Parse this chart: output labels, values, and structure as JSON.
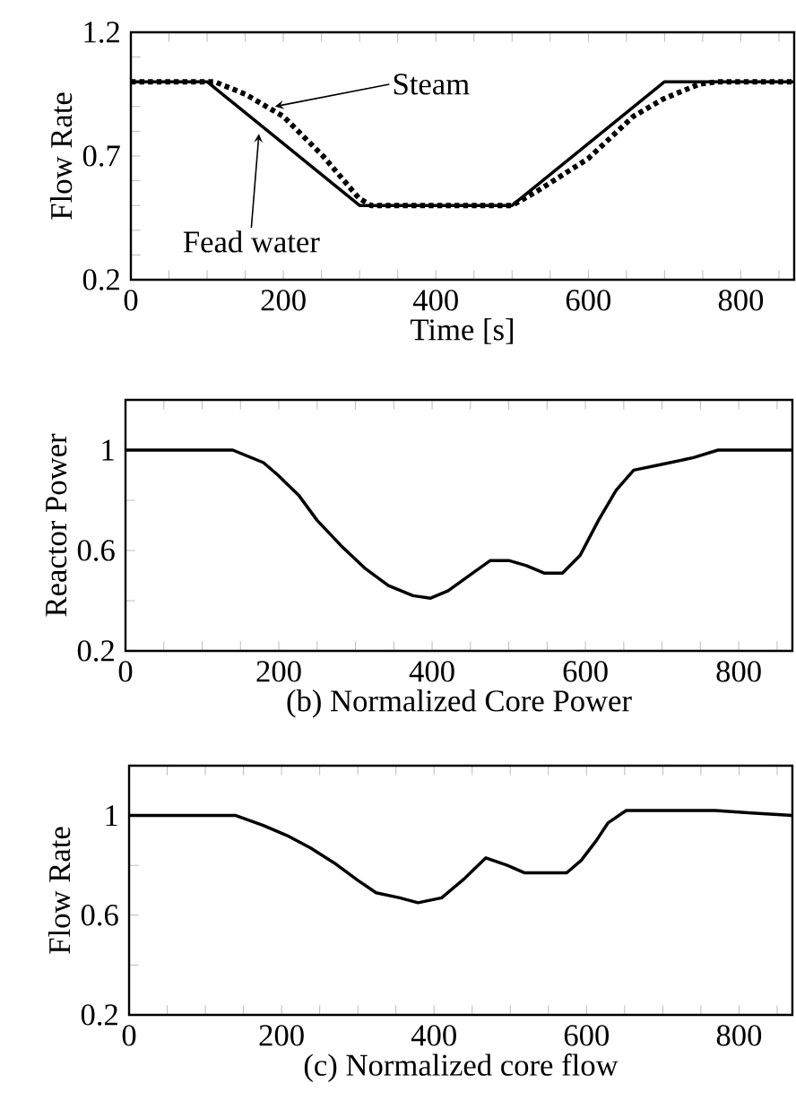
{
  "chart_data": [
    {
      "type": "line",
      "xlabel": "Time [s]",
      "ylabel": "Flow Rate",
      "xlim": [
        0,
        870
      ],
      "ylim": [
        0.2,
        1.2
      ],
      "xticks": [
        0,
        {
          "value": 50,
          "label": null
        },
        {
          "value": 100,
          "label": null
        },
        {
          "value": 150,
          "label": null
        },
        200,
        {
          "value": 250,
          "label": null
        },
        {
          "value": 300,
          "label": null
        },
        {
          "value": 350,
          "label": null
        },
        400,
        {
          "value": 450,
          "label": null
        },
        {
          "value": 500,
          "label": null
        },
        {
          "value": 550,
          "label": null
        },
        600,
        {
          "value": 650,
          "label": null
        },
        {
          "value": 700,
          "label": null
        },
        {
          "value": 750,
          "label": null
        },
        800,
        {
          "value": 850,
          "label": null
        }
      ],
      "yticks": [
        0.2,
        {
          "value": 0.3,
          "label": null
        },
        {
          "value": 0.4,
          "label": null
        },
        {
          "value": 0.5,
          "label": null
        },
        {
          "value": 0.6,
          "label": null
        },
        0.7,
        {
          "value": 0.8,
          "label": null
        },
        {
          "value": 0.9,
          "label": null
        },
        {
          "value": 1.0,
          "label": null
        },
        {
          "value": 1.1,
          "label": null
        },
        1.2
      ],
      "series": [
        {
          "color": "#000000",
          "line_style": "solid",
          "x": [
            0,
            100,
            300,
            500,
            700,
            870
          ],
          "values": [
            1.0,
            1.0,
            0.5,
            0.5,
            1.0,
            1.0
          ]
        },
        {
          "color": "#000000",
          "line_style": "dotted",
          "x": [
            0,
            110,
            150,
            200,
            252,
            299,
            315,
            500,
            534,
            600,
            659,
            698,
            745,
            769,
            870
          ],
          "values": [
            1.0,
            1.0,
            0.95,
            0.86,
            0.7,
            0.53,
            0.5,
            0.5,
            0.56,
            0.69,
            0.86,
            0.93,
            0.99,
            1.0,
            1.0
          ]
        }
      ],
      "annotations": [
        {
          "text": "Steam",
          "x": 189,
          "y": 0.9
        },
        {
          "text": "Fead water",
          "x": 168,
          "y": 0.79
        }
      ]
    },
    {
      "type": "line",
      "xlabel": "(b) Normalized Core Power",
      "ylabel": "Reactor Power",
      "xlim": [
        0,
        870
      ],
      "ylim": [
        0.2,
        1.2
      ],
      "xticks": [
        0,
        {
          "value": 50,
          "label": null
        },
        {
          "value": 100,
          "label": null
        },
        {
          "value": 150,
          "label": null
        },
        200,
        {
          "value": 250,
          "label": null
        },
        {
          "value": 300,
          "label": null
        },
        {
          "value": 350,
          "label": null
        },
        400,
        {
          "value": 450,
          "label": null
        },
        {
          "value": 500,
          "label": null
        },
        {
          "value": 550,
          "label": null
        },
        600,
        {
          "value": 650,
          "label": null
        },
        {
          "value": 700,
          "label": null
        },
        {
          "value": 750,
          "label": null
        },
        800,
        {
          "value": 850,
          "label": null
        }
      ],
      "yticks": [
        0.2,
        {
          "value": 0.4,
          "label": null
        },
        0.6,
        {
          "value": 0.8,
          "label": null
        },
        1,
        {
          "value": 1.2,
          "label": null
        }
      ],
      "series": [
        {
          "color": "#000000",
          "line_style": "solid",
          "x": [
            0,
            140,
            180,
            199,
            226,
            250,
            281,
            312,
            343,
            375,
            398,
            421,
            453,
            476,
            500,
            523,
            546,
            570,
            593,
            617,
            640,
            663,
            695,
            741,
            773,
            870
          ],
          "values": [
            1.0,
            1.0,
            0.95,
            0.9,
            0.82,
            0.72,
            0.62,
            0.53,
            0.46,
            0.42,
            0.41,
            0.44,
            0.51,
            0.56,
            0.56,
            0.54,
            0.51,
            0.51,
            0.58,
            0.72,
            0.84,
            0.92,
            0.94,
            0.97,
            1.0,
            1.0
          ]
        }
      ]
    },
    {
      "type": "line",
      "xlabel": "(c) Normalized core flow",
      "ylabel": "Flow Rate",
      "xlim": [
        0,
        870
      ],
      "ylim": [
        0.2,
        1.2
      ],
      "xticks": [
        0,
        {
          "value": 50,
          "label": null
        },
        {
          "value": 100,
          "label": null
        },
        {
          "value": 150,
          "label": null
        },
        200,
        {
          "value": 250,
          "label": null
        },
        {
          "value": 300,
          "label": null
        },
        {
          "value": 350,
          "label": null
        },
        400,
        {
          "value": 450,
          "label": null
        },
        {
          "value": 500,
          "label": null
        },
        {
          "value": 550,
          "label": null
        },
        600,
        {
          "value": 650,
          "label": null
        },
        {
          "value": 700,
          "label": null
        },
        {
          "value": 750,
          "label": null
        },
        800,
        {
          "value": 850,
          "label": null
        }
      ],
      "yticks": [
        0.2,
        {
          "value": 0.4,
          "label": null
        },
        0.6,
        {
          "value": 0.8,
          "label": null
        },
        1,
        {
          "value": 1.2,
          "label": null
        }
      ],
      "series": [
        {
          "color": "#000000",
          "line_style": "solid",
          "x": [
            0,
            140,
            176,
            207,
            238,
            269,
            300,
            324,
            355,
            379,
            410,
            441,
            468,
            496,
            519,
            574,
            593,
            613,
            628,
            652,
            769,
            816,
            870
          ],
          "values": [
            1.0,
            1.0,
            0.96,
            0.92,
            0.87,
            0.81,
            0.74,
            0.69,
            0.67,
            0.65,
            0.67,
            0.75,
            0.83,
            0.8,
            0.77,
            0.77,
            0.82,
            0.9,
            0.97,
            1.02,
            1.02,
            1.01,
            1.0
          ]
        }
      ]
    }
  ]
}
